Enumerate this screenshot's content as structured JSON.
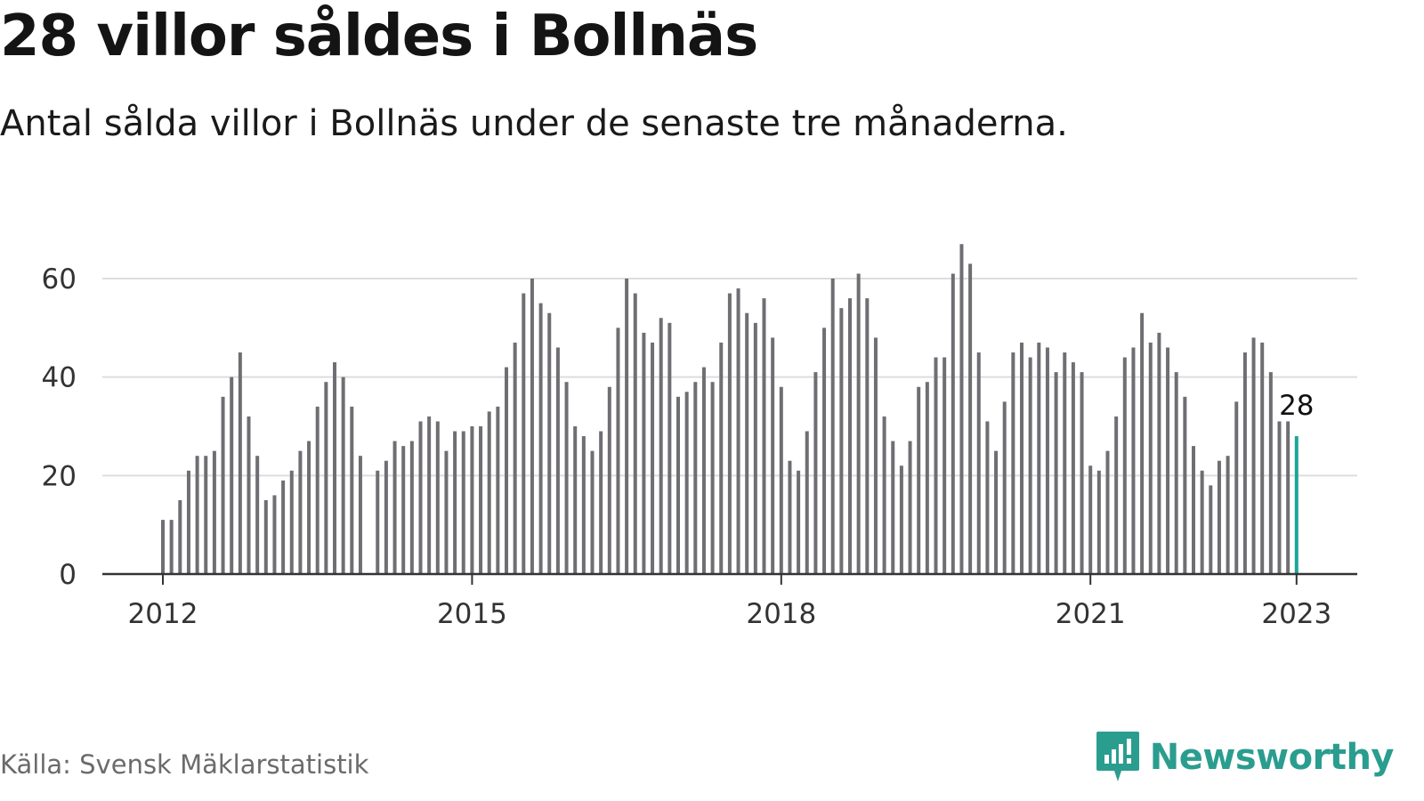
{
  "title": "28 villor såldes i Bollnäs",
  "subtitle": "Antal sålda villor i Bollnäs under de senaste tre månaderna.",
  "source": "Källa: Svensk Mäklarstatistik",
  "brand": {
    "name": "Newsworthy",
    "icon": "newsworthy-logo-icon",
    "color": "#2a9d8f"
  },
  "colors": {
    "bar": "#6e6e73",
    "highlight": "#1aa597",
    "grid": "#dddddd",
    "axis": "#333333"
  },
  "chart_data": {
    "type": "bar",
    "ylim": [
      0,
      70
    ],
    "ylabel": "",
    "xlabel": "",
    "grid": true,
    "yticks": [
      0,
      20,
      40,
      60
    ],
    "xticks": [
      {
        "label": "2012",
        "date": "2012-01"
      },
      {
        "label": "2015",
        "date": "2015-01"
      },
      {
        "label": "2018",
        "date": "2018-01"
      },
      {
        "label": "2021",
        "date": "2021-01"
      },
      {
        "label": "2023",
        "date": "2023-01"
      }
    ],
    "start": "2012-01",
    "values": [
      11,
      11,
      15,
      21,
      24,
      24,
      25,
      36,
      40,
      45,
      32,
      24,
      15,
      16,
      19,
      21,
      25,
      27,
      34,
      39,
      43,
      40,
      34,
      24,
      null,
      21,
      23,
      27,
      26,
      27,
      31,
      32,
      31,
      25,
      29,
      29,
      30,
      30,
      33,
      34,
      42,
      47,
      57,
      60,
      55,
      53,
      46,
      39,
      30,
      28,
      25,
      29,
      38,
      50,
      60,
      57,
      49,
      47,
      52,
      51,
      36,
      37,
      39,
      42,
      39,
      47,
      57,
      58,
      53,
      51,
      56,
      48,
      38,
      23,
      21,
      29,
      41,
      50,
      60,
      54,
      56,
      61,
      56,
      48,
      32,
      27,
      22,
      27,
      38,
      39,
      44,
      44,
      61,
      67,
      63,
      45,
      31,
      25,
      35,
      45,
      47,
      44,
      47,
      46,
      41,
      45,
      43,
      41,
      22,
      21,
      25,
      32,
      44,
      46,
      53,
      47,
      49,
      46,
      41,
      36,
      26,
      21,
      18,
      23,
      24,
      35,
      45,
      48,
      47,
      41,
      31,
      31,
      28
    ],
    "highlight": {
      "date": "2023-01",
      "value": 28,
      "label": "28"
    }
  }
}
